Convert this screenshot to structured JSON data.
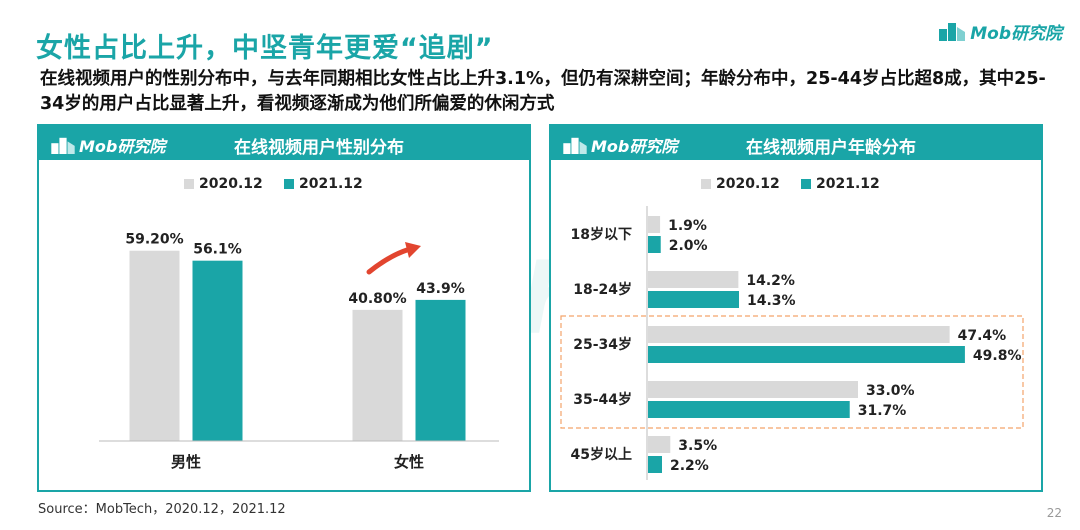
{
  "title": "女性占比上升，中坚青年更爱“追剧”",
  "brand": "Mob研究院",
  "subtitle": "在线视频用户的性别分布中，与去年同期相比女性占比上升3.1%，但仍有深耕空间；年龄分布中，25-44岁占比超8成，其中25-34岁的用户占比显著上升，看视频逐渐成为他们所偏爱的休闲方式",
  "watermark": "MobTech 袤博",
  "source": "Source：MobTech，2020.12，2021.12",
  "page_number": "22",
  "colors": {
    "accent": "#1aa5a7",
    "series_2020": "#d9d9d9",
    "series_2021": "#1aa5a7",
    "arrow": "#e2452f",
    "highlight_border": "#f4a46a"
  },
  "icons": {
    "brand_logo": "building-logo-icon",
    "trend_arrow": "up-arrow-icon"
  },
  "chart_data": [
    {
      "type": "bar",
      "title": "在线视频用户性别分布",
      "categories": [
        "男性",
        "女性"
      ],
      "series": [
        {
          "name": "2020.12",
          "values": [
            59.2,
            40.8
          ],
          "labels": [
            "59.20%",
            "40.80%"
          ]
        },
        {
          "name": "2021.12",
          "values": [
            56.1,
            43.9
          ],
          "labels": [
            "56.1%",
            "43.9%"
          ]
        }
      ],
      "ylim": [
        0,
        70
      ],
      "legend": "top-center",
      "grid": false,
      "annotation": "up-arrow on 女性"
    },
    {
      "type": "bar",
      "orientation": "horizontal",
      "title": "在线视频用户年龄分布",
      "categories": [
        "18岁以下",
        "18-24岁",
        "25-34岁",
        "35-44岁",
        "45岁以上"
      ],
      "series": [
        {
          "name": "2020.12",
          "values": [
            1.9,
            14.2,
            47.4,
            33.0,
            3.5
          ],
          "labels": [
            "1.9%",
            "14.2%",
            "47.4%",
            "33.0%",
            "3.5%"
          ]
        },
        {
          "name": "2021.12",
          "values": [
            2.0,
            14.3,
            49.8,
            31.7,
            2.2
          ],
          "labels": [
            "2.0%",
            "14.3%",
            "49.8%",
            "31.7%",
            "2.2%"
          ]
        }
      ],
      "xlim": [
        0,
        55
      ],
      "legend": "top-center",
      "grid": false,
      "highlight": [
        "25-34岁",
        "35-44岁"
      ]
    }
  ]
}
